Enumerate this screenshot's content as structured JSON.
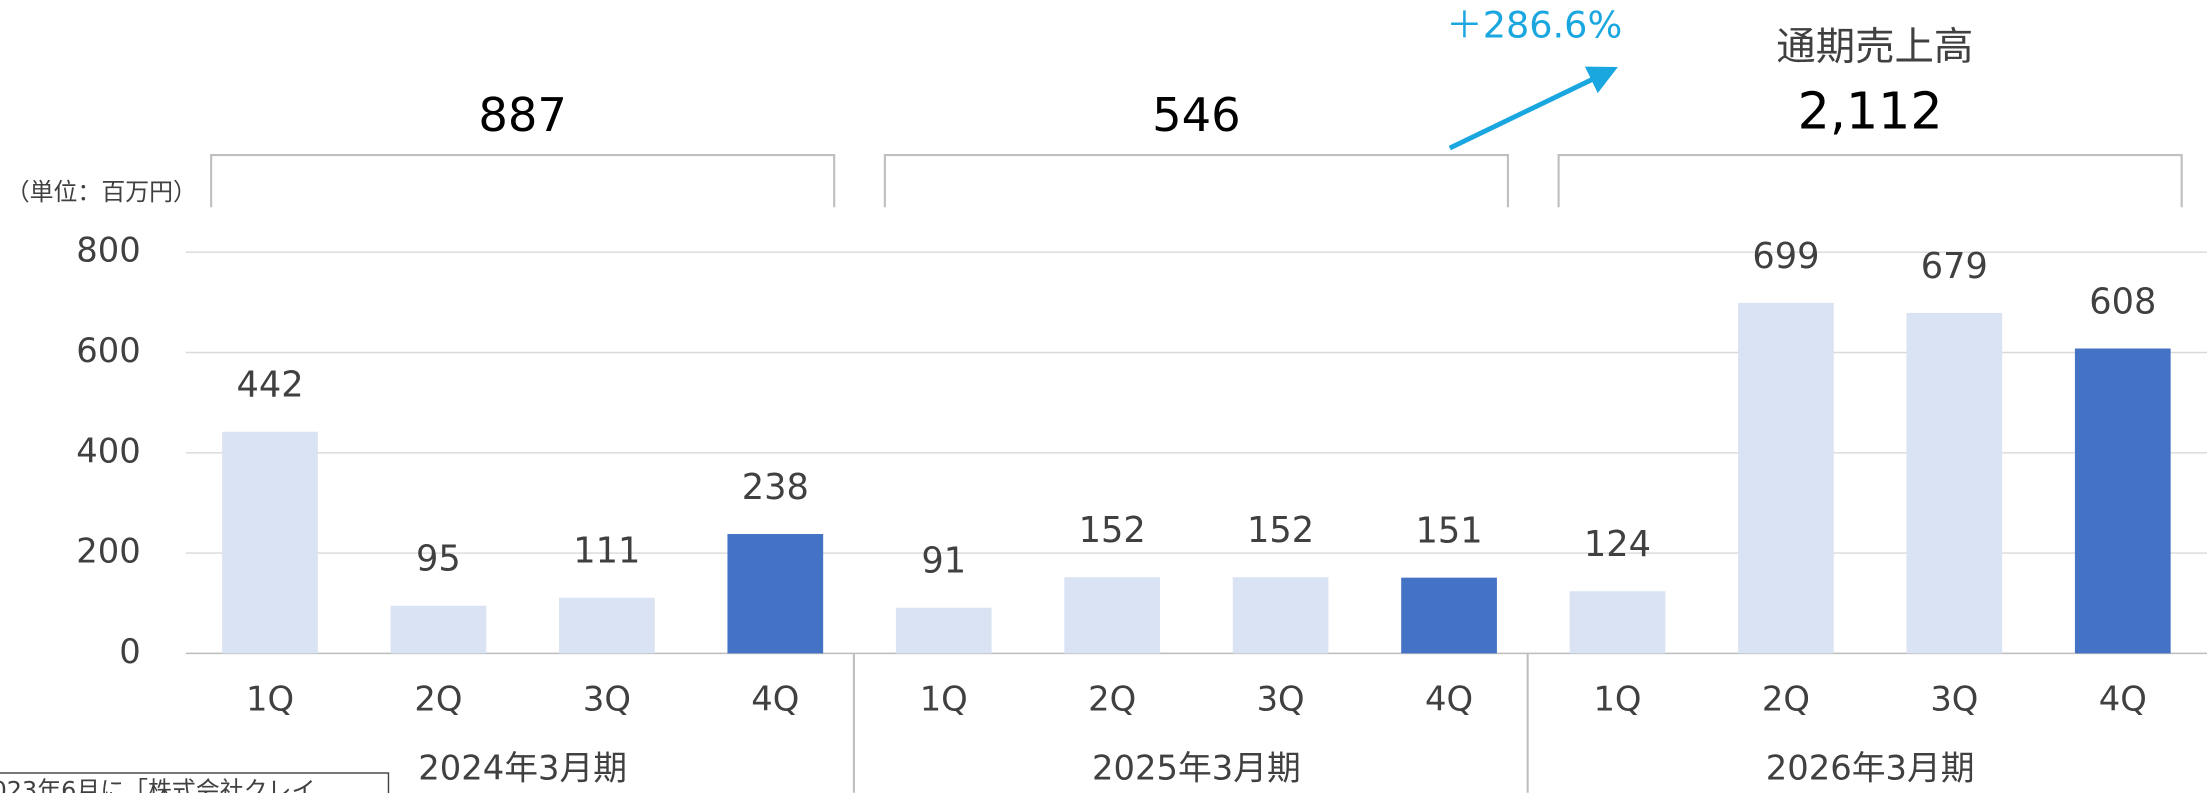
{
  "chart_data": {
    "type": "bar",
    "unit_label": "（単位：百万円）",
    "annual_label": "通期売上高",
    "annotation": "＋286.6%",
    "note": "023年6月に「株式会社クレイ",
    "categories": [
      "1Q",
      "2Q",
      "3Q",
      "4Q",
      "1Q",
      "2Q",
      "3Q",
      "4Q",
      "1Q",
      "2Q",
      "3Q",
      "4Q"
    ],
    "values": [
      442,
      95,
      111,
      238,
      91,
      152,
      152,
      151,
      124,
      699,
      679,
      608
    ],
    "colors": [
      "#dae3f3",
      "#dae3f3",
      "#dae3f3",
      "#4472c4",
      "#dae3f3",
      "#dae3f3",
      "#dae3f3",
      "#4472c4",
      "#dae3f3",
      "#dae3f3",
      "#dae3f3",
      "#4472c4"
    ],
    "groups": [
      {
        "name": "2024年3月期",
        "total": 887
      },
      {
        "name": "2025年3月期",
        "total": 546
      },
      {
        "name": "2026年3月期",
        "total": 2112,
        "total_label": "2,112"
      }
    ],
    "ylim": [
      0,
      800
    ],
    "yticks": [
      0,
      200,
      400,
      600,
      800
    ],
    "grid": true,
    "annotation_color": "#1aa7e0"
  }
}
